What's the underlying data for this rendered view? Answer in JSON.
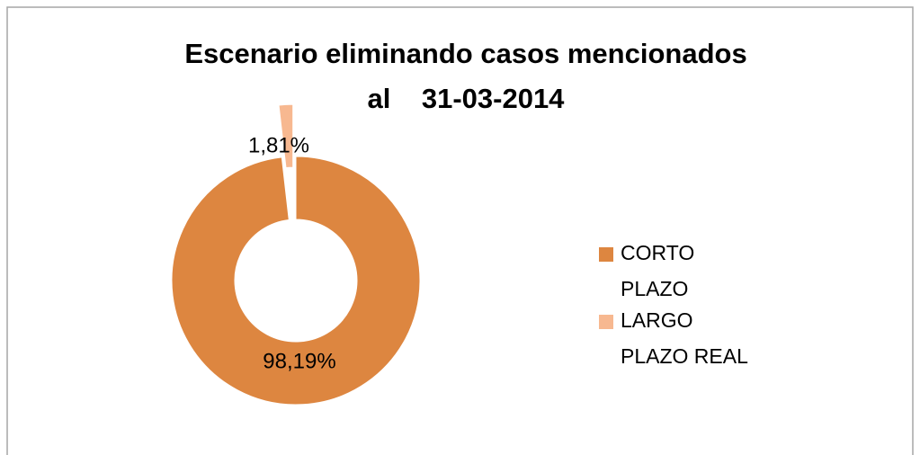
{
  "chart_data": {
    "type": "donut",
    "title": [
      "Escenario eliminando casos mencionados",
      "al    31-03-2014"
    ],
    "categories": [
      "CORTO PLAZO",
      "LARGO PLAZO REAL"
    ],
    "values": [
      98.19,
      1.81
    ],
    "value_labels": [
      "98,19%",
      "1,81%"
    ],
    "colors": [
      "#dd8640",
      "#f7b890"
    ],
    "legend": "right"
  }
}
